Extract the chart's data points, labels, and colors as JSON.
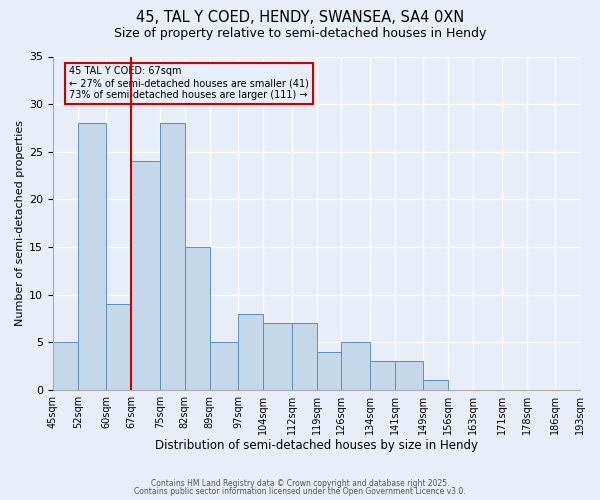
{
  "title": "45, TAL Y COED, HENDY, SWANSEA, SA4 0XN",
  "subtitle": "Size of property relative to semi-detached houses in Hendy",
  "xlabel": "Distribution of semi-detached houses by size in Hendy",
  "ylabel": "Number of semi-detached properties",
  "bin_edges": [
    45,
    52,
    60,
    67,
    75,
    82,
    89,
    97,
    104,
    112,
    119,
    126,
    134,
    141,
    149,
    156,
    163,
    171,
    178,
    186,
    193
  ],
  "bar_heights": [
    5,
    28,
    9,
    24,
    28,
    15,
    5,
    8,
    7,
    7,
    4,
    5,
    3,
    3,
    1,
    0,
    0,
    0,
    0,
    0
  ],
  "bar_color": "#c5d8ea",
  "bar_edge_color": "#5a8fbb",
  "bg_color": "#e8eef8",
  "grid_color": "#ffffff",
  "vline_x": 67,
  "vline_color": "#cc0000",
  "annotation_title": "45 TAL Y COED: 67sqm",
  "annotation_line1": "← 27% of semi-detached houses are smaller (41)",
  "annotation_line2": "73% of semi-detached houses are larger (111) →",
  "annotation_box_edgecolor": "#cc0000",
  "ylim": [
    0,
    35
  ],
  "yticks": [
    0,
    5,
    10,
    15,
    20,
    25,
    30,
    35
  ],
  "footer1": "Contains HM Land Registry data © Crown copyright and database right 2025.",
  "footer2": "Contains public sector information licensed under the Open Government Licence v3.0.",
  "title_fontsize": 10.5,
  "subtitle_fontsize": 9
}
